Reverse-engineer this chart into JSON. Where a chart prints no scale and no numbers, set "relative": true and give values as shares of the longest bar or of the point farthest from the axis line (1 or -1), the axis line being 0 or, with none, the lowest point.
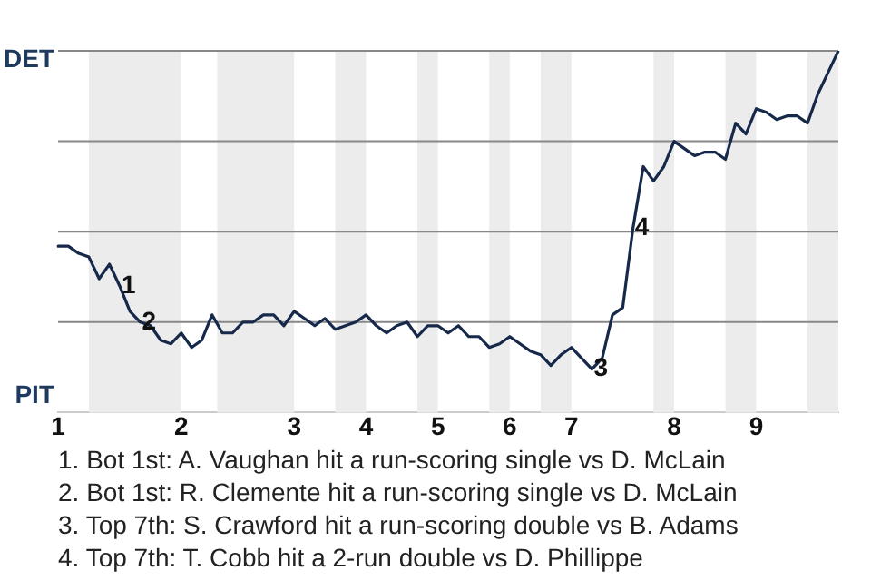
{
  "chart_data": {
    "type": "line",
    "relative": true,
    "categories": [
      "1",
      null,
      null,
      null,
      null,
      null,
      null,
      null,
      null,
      null,
      null,
      null,
      "2",
      null,
      null,
      null,
      null,
      null,
      null,
      null,
      null,
      null,
      null,
      "3",
      null,
      null,
      null,
      null,
      null,
      null,
      "4",
      null,
      null,
      null,
      null,
      null,
      null,
      "5",
      null,
      null,
      null,
      null,
      null,
      null,
      "6",
      null,
      null,
      null,
      null,
      null,
      "7",
      null,
      null,
      null,
      null,
      null,
      null,
      null,
      null,
      null,
      "8",
      null,
      null,
      null,
      null,
      null,
      null,
      null,
      "9",
      null,
      null,
      null,
      null,
      null,
      null,
      null,
      null
    ],
    "series": [
      {
        "color": "#17294a",
        "values": [
          0.46,
          0.46,
          0.44,
          0.43,
          0.37,
          0.41,
          0.35,
          0.28,
          0.25,
          0.24,
          0.2,
          0.19,
          0.22,
          0.18,
          0.2,
          0.27,
          0.22,
          0.22,
          0.25,
          0.25,
          0.27,
          0.27,
          0.24,
          0.28,
          0.26,
          0.24,
          0.26,
          0.23,
          0.24,
          0.25,
          0.27,
          0.24,
          0.22,
          0.24,
          0.25,
          0.21,
          0.24,
          0.24,
          0.22,
          0.24,
          0.21,
          0.21,
          0.18,
          0.19,
          0.21,
          0.19,
          0.17,
          0.16,
          0.13,
          0.16,
          0.18,
          0.15,
          0.12,
          0.15,
          0.27,
          0.29,
          0.51,
          0.68,
          0.64,
          0.68,
          0.75,
          0.73,
          0.71,
          0.72,
          0.72,
          0.7,
          0.8,
          0.77,
          0.84,
          0.83,
          0.81,
          0.82,
          0.82,
          0.8,
          0.88,
          0.94,
          1
        ]
      }
    ],
    "marker": "none",
    "ref_lines": [
      {
        "axis": "y",
        "value": 0.25,
        "color": "#888888"
      },
      {
        "axis": "y",
        "value": 0.5,
        "color": "#888888"
      },
      {
        "axis": "y",
        "value": 0.75,
        "color": "#888888"
      },
      {
        "axis": "y",
        "value": 1,
        "color": "#888888"
      }
    ],
    "annotations": [
      "DET",
      "PIT",
      {
        "text": "1",
        "y": 0.35
      },
      {
        "text": "2",
        "y": 0.25
      },
      {
        "text": "3",
        "y": 0.12
      },
      {
        "text": "4",
        "y": 0.51
      },
      "1. Bot 1st: A. Vaughan hit a run-scoring single vs D. McLain",
      "2. Bot 1st: R. Clemente hit a run-scoring single vs D. McLain",
      "3. Top 7th: S. Crawford hit a run-scoring double vs B. Adams",
      "4. Top 7th: T. Cobb hit a 2-run double vs D. Phillippe"
    ]
  }
}
